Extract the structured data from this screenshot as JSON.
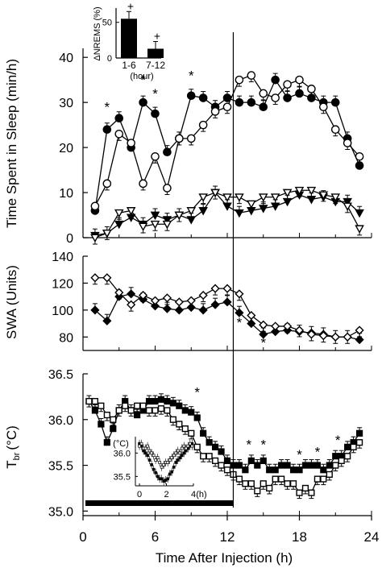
{
  "chart_data": [
    {
      "id": "sleep",
      "type": "line",
      "ylabel": "Time Spent in Sleep (min/h)",
      "ylim": [
        0,
        42
      ],
      "yticks": [
        "0",
        "10",
        "20",
        "30",
        "40"
      ],
      "ytick_values": [
        0,
        10,
        20,
        30,
        40
      ],
      "series": [
        {
          "marker": "filled-circle",
          "x": [
            1,
            2,
            3,
            4,
            5,
            6,
            7,
            8,
            9,
            10,
            11,
            12,
            13,
            14,
            15,
            16,
            17,
            18,
            19,
            20,
            21,
            22,
            23
          ],
          "y": [
            6,
            24,
            26.5,
            20,
            30,
            27.5,
            19,
            22,
            31.5,
            31,
            29,
            31,
            30,
            30,
            29,
            35,
            31,
            32,
            31,
            30,
            30,
            22,
            16
          ]
        },
        {
          "marker": "open-circle",
          "x": [
            1,
            2,
            3,
            4,
            5,
            6,
            7,
            8,
            9,
            10,
            11,
            12,
            13,
            14,
            15,
            16,
            17,
            18,
            19,
            20,
            21,
            22,
            23
          ],
          "y": [
            7,
            12,
            23,
            21,
            12,
            18,
            11,
            22,
            22,
            25,
            28,
            29,
            35,
            36,
            32,
            31,
            34,
            35,
            33,
            29,
            24,
            21,
            18
          ]
        },
        {
          "marker": "filled-triangle-down",
          "x": [
            1,
            2,
            3,
            4,
            5,
            6,
            7,
            8,
            9,
            10,
            11,
            12,
            13,
            14,
            15,
            16,
            17,
            18,
            19,
            20,
            21,
            22,
            23
          ],
          "y": [
            0.5,
            1,
            3,
            4.5,
            3,
            5,
            4,
            5,
            4,
            6,
            10,
            7,
            5.5,
            6,
            6.5,
            7,
            8,
            9.5,
            8.5,
            9,
            8,
            8,
            5.5
          ]
        },
        {
          "marker": "open-triangle-down",
          "x": [
            1,
            2,
            3,
            4,
            5,
            6,
            7,
            8,
            9,
            10,
            11,
            12,
            13,
            14,
            15,
            16,
            17,
            18,
            19,
            20,
            21,
            22,
            23
          ],
          "y": [
            0,
            1,
            5.5,
            6,
            2.5,
            3,
            3,
            5,
            6,
            9,
            10,
            9,
            9,
            7.5,
            9,
            9,
            10,
            10.5,
            10.5,
            9.5,
            9,
            7,
            2
          ]
        }
      ],
      "significance": [
        {
          "x": 2,
          "y": 29
        },
        {
          "x": 5,
          "y": 35
        },
        {
          "x": 6,
          "y": 32
        },
        {
          "x": 9,
          "y": 36
        }
      ],
      "mark_text": "*"
    },
    {
      "id": "swa",
      "type": "line",
      "ylabel": "SWA (Units)",
      "ylim": [
        70,
        140
      ],
      "yticks": [
        "80",
        "100",
        "120",
        "140"
      ],
      "ytick_values": [
        80,
        100,
        120,
        140
      ],
      "series": [
        {
          "marker": "filled-diamond",
          "x": [
            1,
            2,
            3,
            4,
            5,
            6,
            7,
            8,
            9,
            10,
            11,
            12,
            13,
            14,
            15,
            16,
            17,
            18,
            19,
            20,
            21,
            22,
            23
          ],
          "y": [
            100,
            92,
            110,
            112,
            108,
            103,
            101,
            100,
            102,
            100,
            104,
            106,
            98,
            90,
            82,
            84,
            85,
            84,
            83,
            82,
            80,
            80,
            78
          ]
        },
        {
          "marker": "open-diamond",
          "x": [
            1,
            2,
            3,
            4,
            5,
            6,
            7,
            8,
            9,
            10,
            11,
            12,
            13,
            14,
            15,
            16,
            17,
            18,
            19,
            20,
            21,
            22,
            23
          ],
          "y": [
            124,
            124,
            113,
            104,
            111,
            107,
            109,
            106,
            107,
            111,
            116,
            116,
            112,
            96,
            89,
            88,
            88,
            85,
            82,
            81,
            80,
            80,
            85
          ]
        }
      ],
      "significance": [
        {
          "x": 13,
          "y": 91
        },
        {
          "x": 15,
          "y": 76
        }
      ],
      "mark_text": "*"
    },
    {
      "id": "tbr",
      "type": "line",
      "ylabel_main": "T",
      "ylabel_sub": "br",
      "ylabel_unit": "(°C)",
      "xlabel": "Time After Injection (h)",
      "ylim": [
        34.95,
        36.5
      ],
      "yticks": [
        "35.0",
        "35.5",
        "36.0",
        "36.5"
      ],
      "ytick_values": [
        35.0,
        35.5,
        36.0,
        36.5
      ],
      "xticks": [
        "0",
        "6",
        "12",
        "18",
        "24"
      ],
      "xtick_values": [
        0,
        6,
        12,
        18,
        24
      ],
      "xlim": [
        0,
        24
      ],
      "series": [
        {
          "marker": "filled-square",
          "x": [
            0.5,
            1,
            1.5,
            2,
            2.5,
            3,
            3.5,
            4,
            4.5,
            5,
            5.5,
            6,
            6.5,
            7,
            7.5,
            8,
            8.5,
            9,
            9.5,
            10,
            10.5,
            11,
            11.5,
            12,
            12.5,
            13,
            13.5,
            14,
            14.5,
            15,
            15.5,
            16,
            16.5,
            17,
            17.5,
            18,
            18.5,
            19,
            19.5,
            20,
            20.5,
            21,
            21.5,
            22,
            22.5,
            23
          ],
          "y": [
            36.2,
            36.1,
            35.95,
            35.75,
            35.9,
            36.1,
            36.2,
            36.1,
            36.05,
            36.1,
            36.2,
            36.2,
            36.22,
            36.2,
            36.18,
            36.15,
            36.1,
            36.08,
            36.02,
            35.85,
            35.75,
            35.7,
            35.65,
            35.55,
            35.5,
            35.5,
            35.45,
            35.55,
            35.5,
            35.55,
            35.45,
            35.45,
            35.5,
            35.5,
            35.45,
            35.45,
            35.5,
            35.5,
            35.5,
            35.45,
            35.5,
            35.6,
            35.6,
            35.7,
            35.75,
            35.85
          ]
        },
        {
          "marker": "open-square",
          "x": [
            0.5,
            1,
            1.5,
            2,
            2.5,
            3,
            3.5,
            4,
            4.5,
            5,
            5.5,
            6,
            6.5,
            7,
            7.5,
            8,
            8.5,
            9,
            9.5,
            10,
            10.5,
            11,
            11.5,
            12,
            12.5,
            13,
            13.5,
            14,
            14.5,
            15,
            15.5,
            16,
            16.5,
            17,
            17.5,
            18,
            18.5,
            19,
            19.5,
            20,
            20.5,
            21,
            21.5,
            22,
            22.5,
            23
          ],
          "y": [
            36.2,
            36.2,
            36.15,
            36.05,
            36.0,
            36.1,
            36.15,
            36.1,
            36.15,
            36.15,
            36.1,
            36.1,
            36.12,
            36.1,
            36.0,
            35.95,
            35.9,
            35.85,
            35.7,
            35.6,
            35.6,
            35.55,
            35.5,
            35.45,
            35.4,
            35.35,
            35.3,
            35.3,
            35.22,
            35.3,
            35.25,
            35.35,
            35.35,
            35.3,
            35.3,
            35.2,
            35.25,
            35.2,
            35.35,
            35.35,
            35.4,
            35.5,
            35.55,
            35.6,
            35.7,
            35.75
          ]
        }
      ],
      "significance": [
        {
          "x": 9.5,
          "y": 36.3
        },
        {
          "x": 13.8,
          "y": 35.73
        },
        {
          "x": 15,
          "y": 35.73
        },
        {
          "x": 18,
          "y": 35.62
        },
        {
          "x": 19.5,
          "y": 35.65
        },
        {
          "x": 21.2,
          "y": 35.78
        }
      ],
      "mark_text": "*",
      "dark_period": [
        0,
        12.5
      ]
    },
    {
      "id": "inset-nrems",
      "type": "bar",
      "ylabel": "ΔNREMS (%)",
      "categories": [
        "1-6",
        "7-12"
      ],
      "values": [
        55,
        13
      ],
      "ylim": [
        0,
        70
      ],
      "yticks": [
        "0",
        "50"
      ],
      "ytick_values": [
        0,
        50
      ],
      "mark_text": "+",
      "xlabel": "(hour)",
      "color": "#000000"
    },
    {
      "id": "inset-tbr",
      "type": "scatter",
      "unit_label": "(°C)",
      "xlabel": "(h)",
      "xticks": [
        "0",
        "2",
        "4"
      ],
      "xtick_values": [
        0,
        2,
        4
      ],
      "xlim": [
        -0.3,
        4
      ],
      "yticks": [
        "35.5",
        "36.0"
      ],
      "ytick_values": [
        35.5,
        36.0
      ],
      "ylim": [
        35.3,
        36.35
      ],
      "series": [
        {
          "marker": "filled",
          "x": [
            0,
            0.15,
            0.3,
            0.45,
            0.6,
            0.75,
            0.9,
            1.05,
            1.2,
            1.35,
            1.5,
            1.65,
            1.8,
            1.95,
            2.1,
            2.25,
            2.4,
            2.55,
            2.7,
            2.85,
            3.0,
            3.15,
            3.3,
            3.45,
            3.6,
            3.75,
            3.9
          ],
          "y": [
            36.2,
            36.15,
            36.05,
            36.0,
            35.95,
            35.85,
            35.75,
            35.65,
            35.58,
            35.5,
            35.45,
            35.45,
            35.4,
            35.42,
            35.45,
            35.55,
            35.6,
            35.7,
            35.8,
            35.85,
            35.9,
            35.95,
            36.0,
            36.05,
            36.1,
            36.15,
            36.2
          ]
        },
        {
          "marker": "open",
          "x": [
            0,
            0.15,
            0.3,
            0.45,
            0.6,
            0.75,
            0.9,
            1.05,
            1.2,
            1.35,
            1.5,
            1.65,
            1.8,
            1.95,
            2.1,
            2.25,
            2.4,
            2.55,
            2.7,
            2.85,
            3.0,
            3.15,
            3.3,
            3.45,
            3.6,
            3.75,
            3.9
          ],
          "y": [
            36.15,
            36.2,
            36.1,
            36.1,
            36.15,
            36.05,
            36.0,
            35.95,
            35.85,
            35.9,
            35.8,
            35.7,
            35.75,
            35.8,
            35.8,
            35.85,
            35.9,
            35.95,
            36.0,
            36.05,
            36.0,
            36.1,
            36.15,
            36.1,
            36.15,
            36.2,
            36.15
          ]
        }
      ]
    }
  ]
}
